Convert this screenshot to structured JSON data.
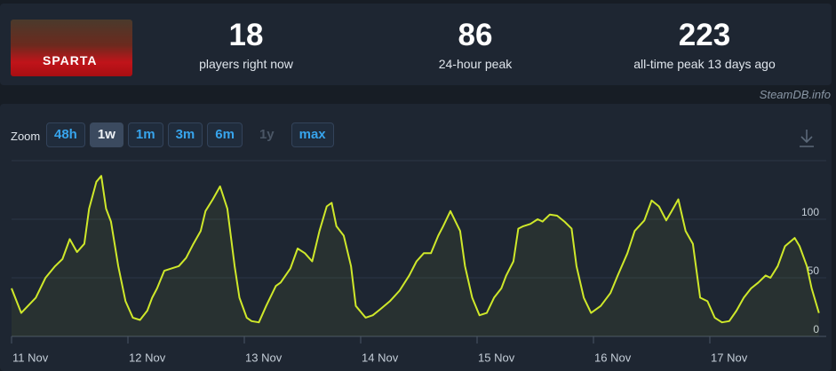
{
  "header": {
    "thumbnail_text": "SPARTA",
    "stats": [
      {
        "value": 18,
        "label": "players right now"
      },
      {
        "value": 86,
        "label": "24-hour peak"
      },
      {
        "value": 223,
        "label": "all-time peak 13 days ago"
      }
    ],
    "credit": "SteamDB.info"
  },
  "zoom": {
    "label": "Zoom",
    "options": [
      "48h",
      "1w",
      "1m",
      "3m",
      "6m",
      "1y",
      "max"
    ],
    "active": "1w",
    "disabled": [
      "1y"
    ]
  },
  "chart_data": {
    "type": "line",
    "color": "#cfe82a",
    "grid": true,
    "x": [
      0,
      2,
      5,
      7,
      9,
      10.5,
      12,
      13.5,
      15,
      16,
      17.5,
      18.5,
      19.5,
      20.5,
      22,
      23.5,
      25,
      26.5,
      28,
      29,
      30,
      31.5,
      33,
      34.5,
      36,
      37.5,
      39,
      40,
      41.5,
      43,
      44.5,
      46,
      47,
      48.5,
      49.5,
      51,
      52.5,
      54.5,
      55.5,
      57.5,
      59,
      60.5,
      62,
      63.5,
      65,
      66,
      67,
      68.5,
      70,
      71,
      73,
      74.5,
      76,
      78,
      80,
      82,
      83.5,
      85,
      86.5,
      88,
      89,
      90.5,
      92.5,
      93.5,
      95,
      96.5,
      98,
      99.5,
      101,
      102,
      103.5,
      104.5,
      105.5,
      107,
      108.5,
      109.5,
      111,
      112.5,
      114,
      115.5,
      116.5,
      118,
      119.5,
      121.5,
      123.5,
      125,
      127,
      128.5,
      130.5,
      132,
      133.5,
      135,
      136,
      137.5,
      139,
      140.5,
      142,
      143.5,
      145,
      146.5,
      148,
      149.5,
      151,
      152.5,
      154,
      155.5,
      156.5,
      158,
      159.5,
      161.5,
      162.5,
      164,
      165,
      166.5
    ],
    "values": [
      41,
      20,
      33,
      50,
      60,
      66,
      83,
      72,
      79,
      109,
      132,
      137,
      109,
      98,
      60,
      30,
      16,
      14,
      22,
      33,
      41,
      56,
      58,
      60,
      67,
      79,
      90,
      107,
      117,
      128,
      109,
      60,
      33,
      16,
      13,
      12,
      26,
      43,
      46,
      58,
      75,
      71,
      64,
      90,
      111,
      114,
      94,
      86,
      60,
      26,
      16,
      18,
      23,
      30,
      39,
      52,
      64,
      71,
      71,
      86,
      94,
      107,
      90,
      60,
      33,
      18,
      20,
      33,
      41,
      52,
      64,
      92,
      94,
      96,
      100,
      98,
      104,
      103,
      98,
      92,
      60,
      33,
      20,
      26,
      37,
      52,
      71,
      90,
      99,
      116,
      111,
      99,
      106,
      117,
      90,
      79,
      33,
      30,
      16,
      12,
      13,
      22,
      33,
      41,
      46,
      52,
      50,
      60,
      77,
      84,
      77,
      60,
      41,
      20
    ],
    "xlim": [
      0,
      168
    ],
    "xticks": [
      {
        "value": 0,
        "label": "11 Nov"
      },
      {
        "value": 24,
        "label": "12 Nov"
      },
      {
        "value": 48,
        "label": "13 Nov"
      },
      {
        "value": 72,
        "label": "14 Nov"
      },
      {
        "value": 96,
        "label": "15 Nov"
      },
      {
        "value": 120,
        "label": "16 Nov"
      },
      {
        "value": 144,
        "label": "17 Nov"
      }
    ],
    "ylim": [
      0,
      150
    ],
    "yticks": [
      0,
      50,
      100
    ]
  }
}
